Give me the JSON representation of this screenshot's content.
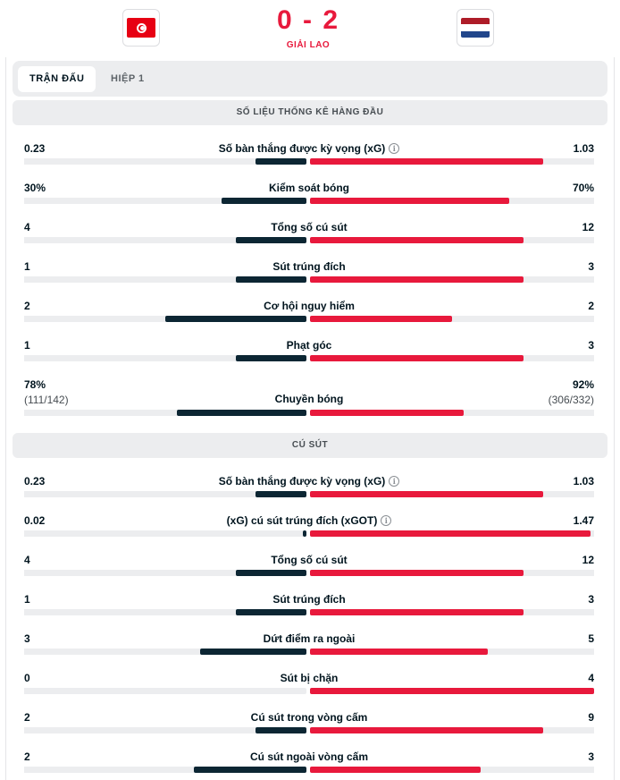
{
  "match": {
    "home_team_flag": "tunisia-flag-icon",
    "away_team_flag": "netherlands-flag-icon",
    "score": "0 - 2",
    "status": "GIẢI LAO"
  },
  "colors": {
    "accent": "#e8193c",
    "home_bar": "#0c2633",
    "away_bar": "#e8193c",
    "track": "#ecedef"
  },
  "tabs": [
    {
      "label": "TRẬN ĐẤU",
      "active": true
    },
    {
      "label": "HIỆP 1",
      "active": false
    }
  ],
  "sections": [
    {
      "title": "SỐ LIỆU THỐNG KÊ HÀNG ĐẦU",
      "stats": [
        {
          "label": "Số bàn thắng được kỳ vọng (xG)",
          "info": true,
          "home": "0.23",
          "away": "1.03",
          "home_ratio": 0.18,
          "away_ratio": 0.82
        },
        {
          "label": "Kiểm soát bóng",
          "home": "30%",
          "away": "70%",
          "home_ratio": 0.3,
          "away_ratio": 0.7
        },
        {
          "label": "Tổng số cú sút",
          "home": "4",
          "away": "12",
          "home_ratio": 0.25,
          "away_ratio": 0.75
        },
        {
          "label": "Sút trúng đích",
          "home": "1",
          "away": "3",
          "home_ratio": 0.25,
          "away_ratio": 0.75
        },
        {
          "label": "Cơ hội nguy hiểm",
          "home": "2",
          "away": "2",
          "home_ratio": 0.5,
          "away_ratio": 0.5
        },
        {
          "label": "Phạt góc",
          "home": "1",
          "away": "3",
          "home_ratio": 0.25,
          "away_ratio": 0.75
        },
        {
          "label": "Chuyền bóng",
          "home": "78%",
          "away": "92%",
          "home_sub": "(111/142)",
          "away_sub": "(306/332)",
          "home_ratio": 0.46,
          "away_ratio": 0.54
        }
      ]
    },
    {
      "title": "CÚ SÚT",
      "stats": [
        {
          "label": "Số bàn thắng được kỳ vọng (xG)",
          "info": true,
          "home": "0.23",
          "away": "1.03",
          "home_ratio": 0.18,
          "away_ratio": 0.82
        },
        {
          "label": "(xG) cú sút trúng đích (xGOT)",
          "info": true,
          "home": "0.02",
          "away": "1.47",
          "home_ratio": 0.013,
          "away_ratio": 0.987
        },
        {
          "label": "Tổng số cú sút",
          "home": "4",
          "away": "12",
          "home_ratio": 0.25,
          "away_ratio": 0.75
        },
        {
          "label": "Sút trúng đích",
          "home": "1",
          "away": "3",
          "home_ratio": 0.25,
          "away_ratio": 0.75
        },
        {
          "label": "Dứt điểm ra ngoài",
          "home": "3",
          "away": "5",
          "home_ratio": 0.375,
          "away_ratio": 0.625
        },
        {
          "label": "Sút bị chặn",
          "home": "0",
          "away": "4",
          "home_ratio": 0.0,
          "away_ratio": 1.0
        },
        {
          "label": "Cú sút trong vòng cấm",
          "home": "2",
          "away": "9",
          "home_ratio": 0.18,
          "away_ratio": 0.82
        },
        {
          "label": "Cú sút ngoài vòng cấm",
          "home": "2",
          "away": "3",
          "home_ratio": 0.4,
          "away_ratio": 0.6
        }
      ]
    }
  ]
}
